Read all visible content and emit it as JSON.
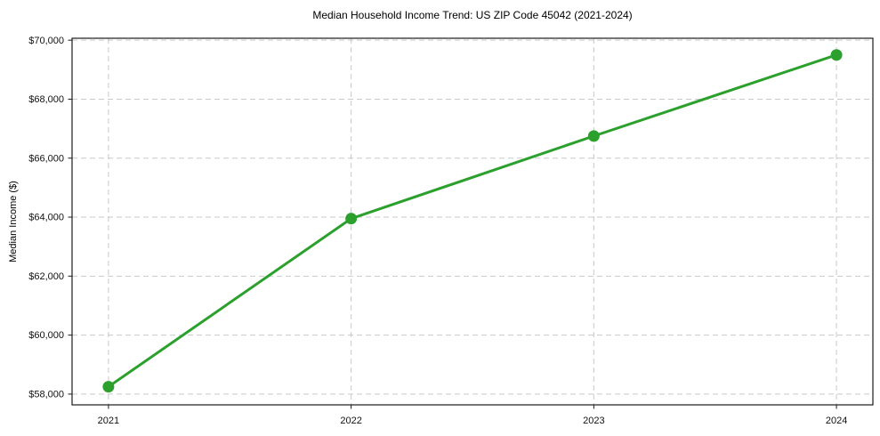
{
  "chart_data": {
    "type": "line",
    "title": "Median Household Income Trend: US ZIP Code 45042 (2021-2024)",
    "xlabel": "",
    "ylabel": "Median Income ($)",
    "x": [
      2021,
      2022,
      2023,
      2024
    ],
    "values": [
      58250,
      63950,
      66750,
      69500
    ],
    "xtick_labels": [
      "2021",
      "2022",
      "2023",
      "2024"
    ],
    "ytick_values": [
      58000,
      60000,
      62000,
      64000,
      66000,
      68000,
      70000
    ],
    "ytick_labels": [
      "$58,000",
      "$60,000",
      "$62,000",
      "$64,000",
      "$66,000",
      "$68,000",
      "$70,000"
    ],
    "xlim": [
      2020.85,
      2024.15
    ],
    "ylim": [
      57635,
      70065
    ],
    "grid": true,
    "grid_style": "dashed",
    "legend": "none",
    "line_color": "#2ca02c",
    "line_width": 3,
    "marker": "circle",
    "marker_radius": 6.5,
    "background_color": "#ffffff",
    "spine_color": "#1a1a1a"
  }
}
